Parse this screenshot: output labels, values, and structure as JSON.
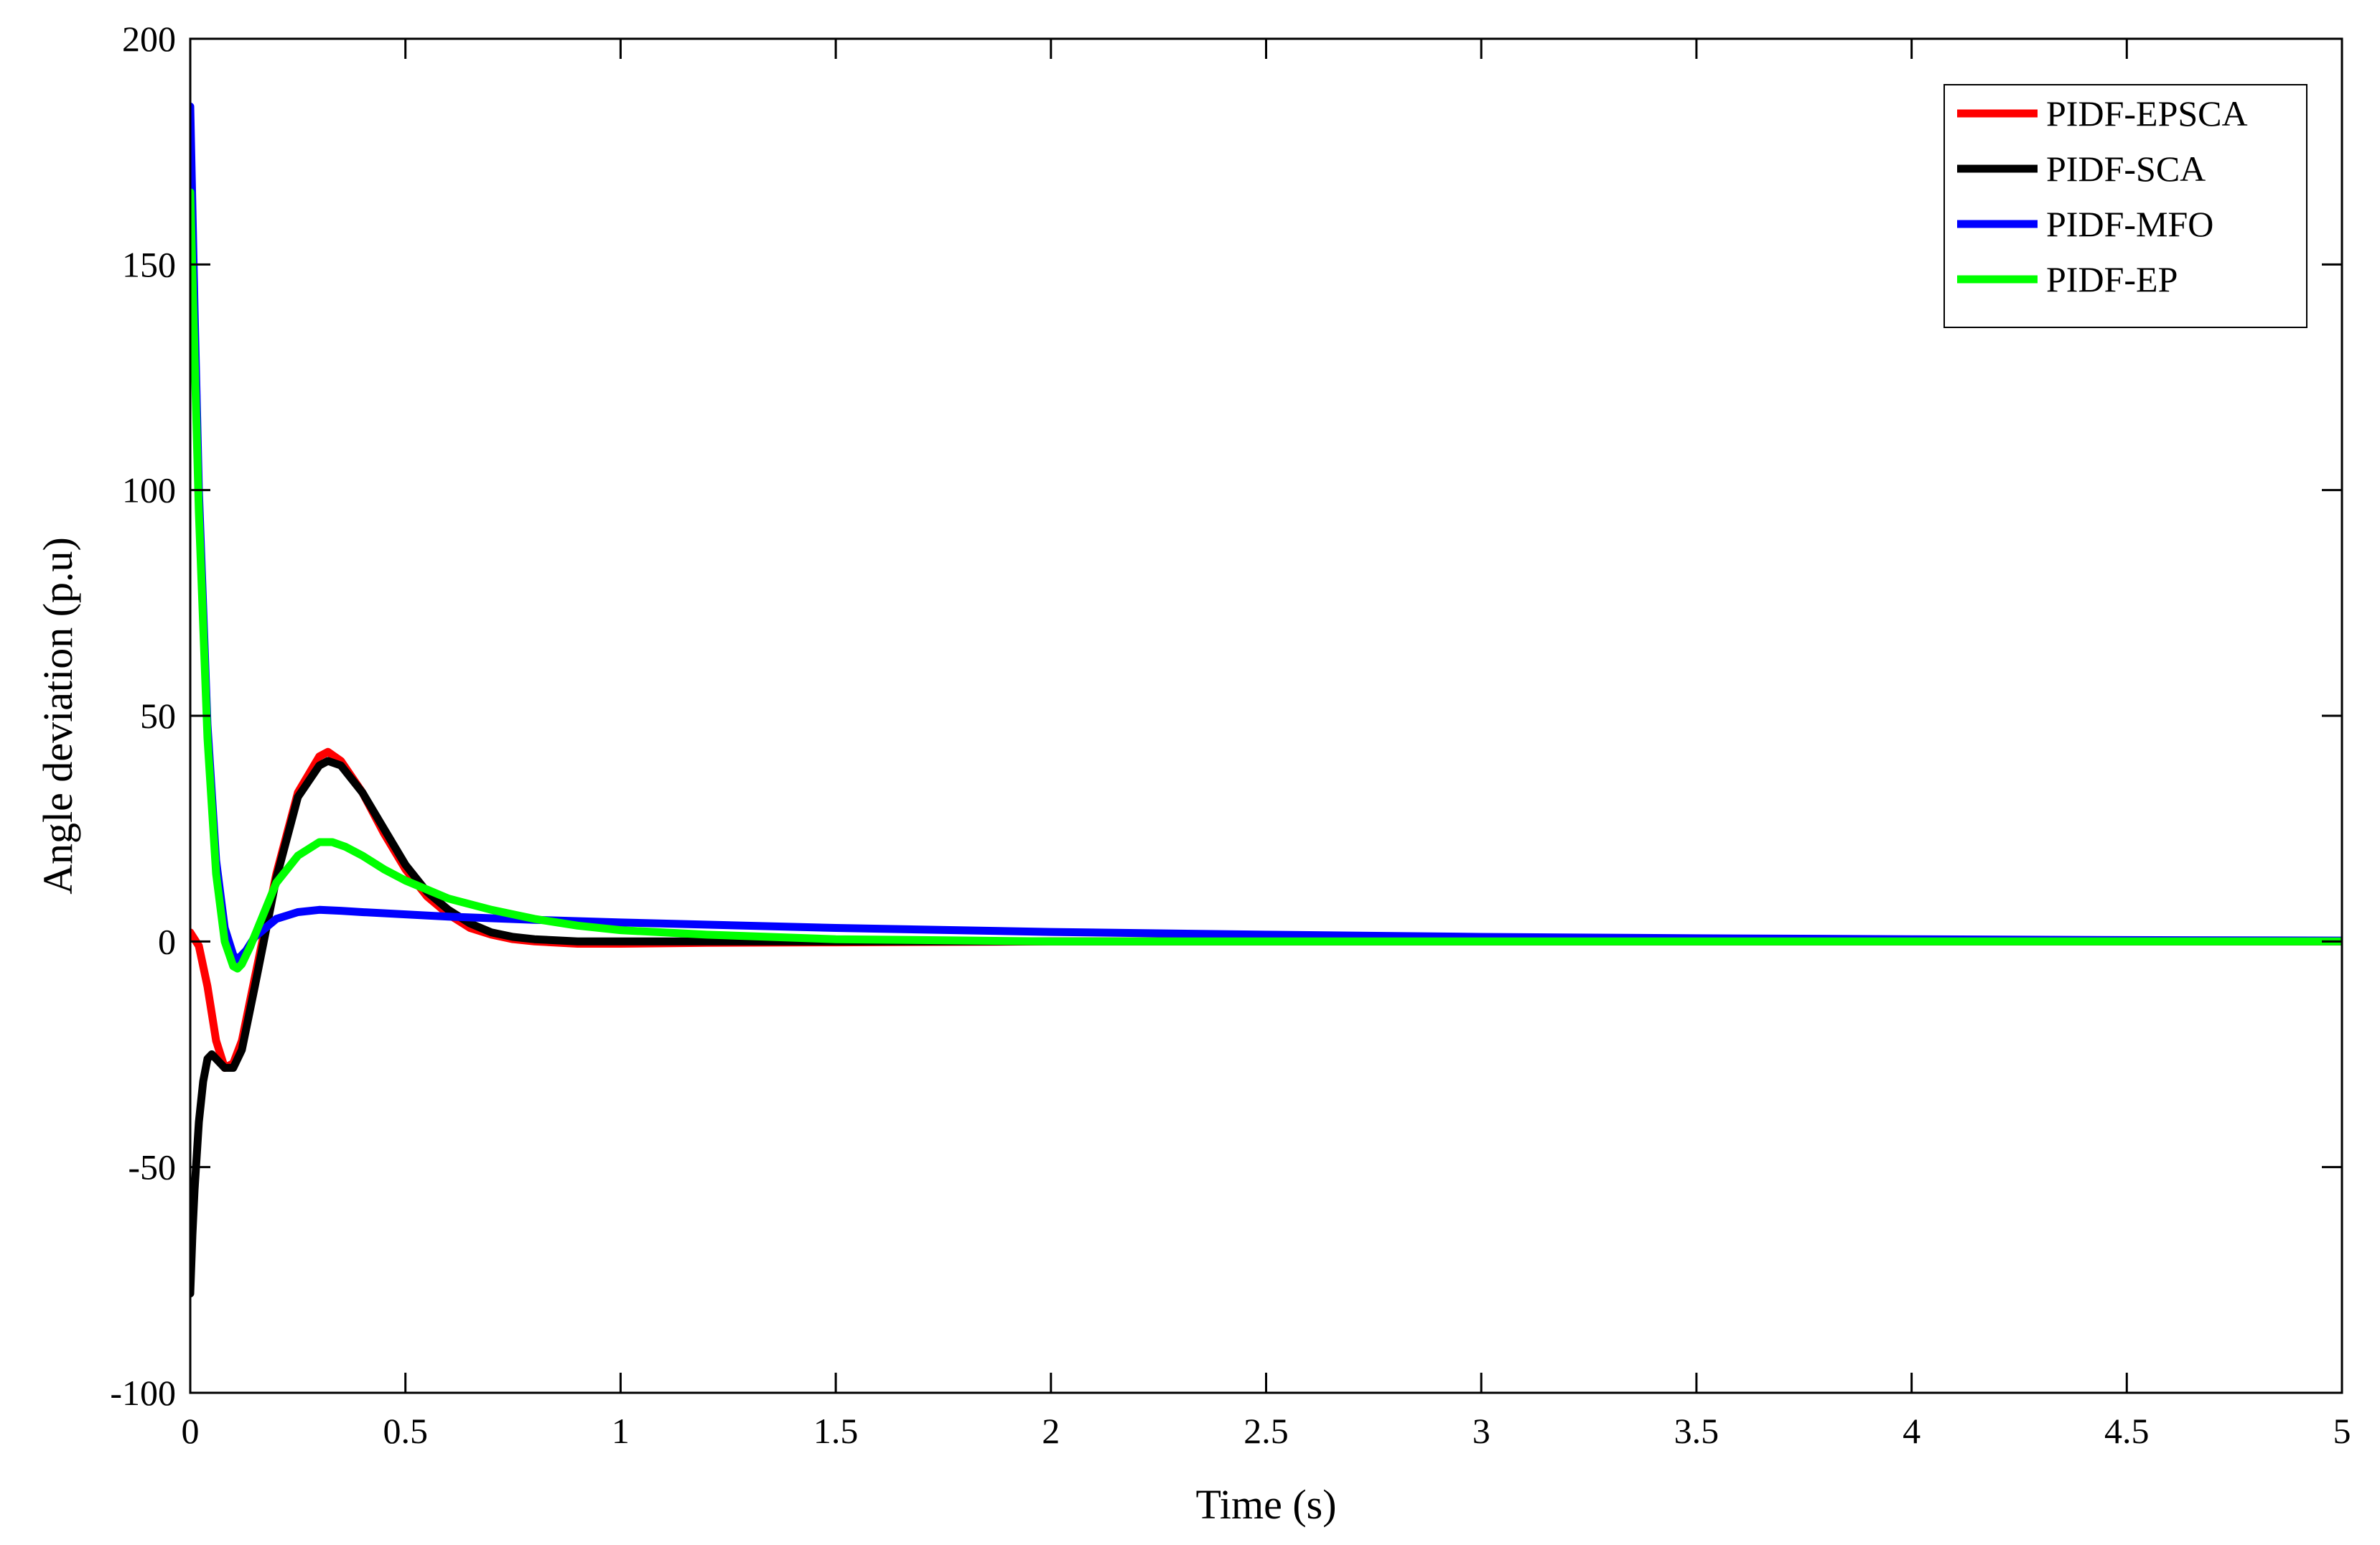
{
  "chart_data": {
    "type": "line",
    "xlabel": "Time (s)",
    "ylabel": "Angle deviation (p.u)",
    "xlim": [
      0,
      5
    ],
    "ylim": [
      -100,
      200
    ],
    "xticks": [
      0,
      0.5,
      1,
      1.5,
      2,
      2.5,
      3,
      3.5,
      4,
      4.5,
      5
    ],
    "xtick_labels": [
      "0",
      "0.5",
      "1",
      "1.5",
      "2",
      "2.5",
      "3",
      "3.5",
      "4",
      "4.5",
      "5"
    ],
    "yticks": [
      -100,
      -50,
      0,
      50,
      100,
      150,
      200
    ],
    "ytick_labels": [
      "-100",
      "-50",
      "0",
      "50",
      "100",
      "150",
      "200"
    ],
    "grid": false,
    "legend_position": "top-right",
    "series": [
      {
        "name": "PIDF-EPSCA",
        "color": "#ff0000",
        "x": [
          0,
          0.02,
          0.04,
          0.06,
          0.08,
          0.1,
          0.12,
          0.15,
          0.2,
          0.25,
          0.3,
          0.32,
          0.35,
          0.4,
          0.45,
          0.5,
          0.55,
          0.6,
          0.65,
          0.7,
          0.75,
          0.8,
          0.9,
          1.0,
          1.2,
          1.5,
          2,
          3,
          4,
          5
        ],
        "y": [
          2,
          -1,
          -10,
          -22,
          -28,
          -27,
          -22,
          -8,
          15,
          33,
          41,
          42,
          40,
          33,
          24,
          16,
          10,
          6,
          3,
          1.5,
          0.5,
          0,
          -0.5,
          -0.5,
          -0.3,
          -0.2,
          0,
          0,
          0,
          0
        ]
      },
      {
        "name": "PIDF-SCA",
        "color": "#000000",
        "x": [
          0,
          0.005,
          0.01,
          0.02,
          0.03,
          0.04,
          0.05,
          0.06,
          0.08,
          0.1,
          0.12,
          0.15,
          0.2,
          0.25,
          0.3,
          0.32,
          0.35,
          0.4,
          0.45,
          0.5,
          0.55,
          0.6,
          0.65,
          0.7,
          0.75,
          0.8,
          0.9,
          1.0,
          1.2,
          1.5,
          2,
          3,
          4,
          5
        ],
        "y": [
          -78,
          -65,
          -55,
          -40,
          -31,
          -26,
          -25,
          -26,
          -28,
          -28,
          -24,
          -10,
          14,
          32,
          39,
          40,
          39,
          33,
          25,
          17,
          11,
          7,
          4,
          2,
          1,
          0.5,
          0,
          0,
          0,
          0,
          0,
          0,
          0,
          0
        ]
      },
      {
        "name": "PIDF-MFO",
        "color": "#0000ff",
        "x": [
          0,
          0.01,
          0.02,
          0.04,
          0.06,
          0.08,
          0.1,
          0.11,
          0.13,
          0.15,
          0.2,
          0.25,
          0.3,
          0.35,
          0.4,
          0.5,
          0.6,
          0.8,
          1.0,
          1.5,
          2,
          2.5,
          3,
          3.5,
          4,
          4.5,
          5
        ],
        "y": [
          185,
          140,
          100,
          48,
          18,
          3,
          -3,
          -4,
          -2,
          1,
          5,
          6.5,
          7,
          6.8,
          6.5,
          6,
          5.5,
          4.8,
          4.2,
          3,
          2.1,
          1.5,
          1,
          0.7,
          0.5,
          0.3,
          0.2
        ]
      },
      {
        "name": "PIDF-EP",
        "color": "#00ff00",
        "x": [
          0,
          0.01,
          0.02,
          0.04,
          0.06,
          0.08,
          0.1,
          0.11,
          0.12,
          0.14,
          0.17,
          0.2,
          0.25,
          0.3,
          0.33,
          0.36,
          0.4,
          0.45,
          0.5,
          0.55,
          0.6,
          0.7,
          0.8,
          0.9,
          1.0,
          1.2,
          1.5,
          2,
          3,
          4,
          5
        ],
        "y": [
          166,
          130,
          95,
          45,
          15,
          0,
          -5.5,
          -6,
          -5,
          -1,
          6,
          13,
          19,
          22,
          22,
          21,
          19,
          16,
          13.5,
          11.5,
          9.5,
          7,
          5,
          3.5,
          2.5,
          1.5,
          0.5,
          0,
          0,
          0,
          0
        ]
      }
    ]
  }
}
